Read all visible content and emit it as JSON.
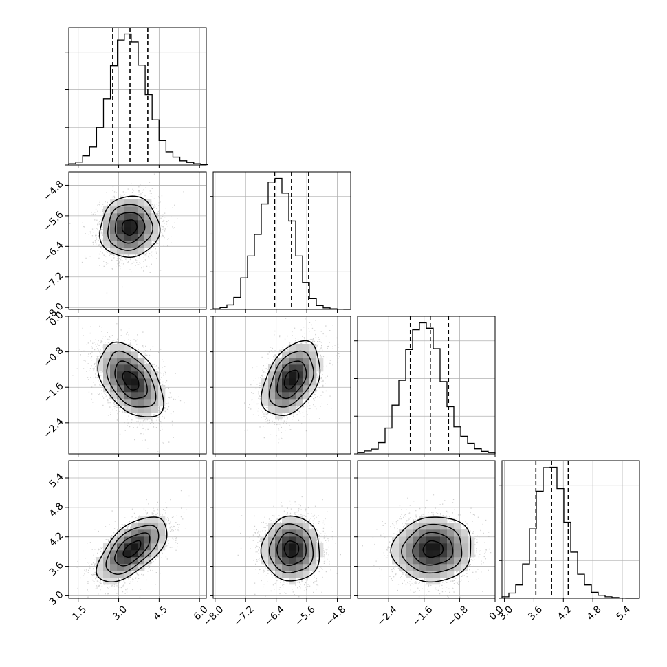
{
  "chart_data": {
    "type": "corner",
    "description_of_layout": "lower-triangular corner plot of 4 parameters: 1D histograms on the diagonal, 2D density (grayscale bins + contours + scatter points) below the diagonal",
    "num_parameters": 4,
    "parameters": [
      {
        "index": 0,
        "label": "",
        "range": [
          1.15,
          6.25
        ],
        "ticks": [
          1.5,
          3.0,
          4.5,
          6.0
        ],
        "tick_labels": [
          "1.5",
          "3.0",
          "4.5",
          "6.0"
        ],
        "quantiles": [
          2.78,
          3.42,
          4.08
        ],
        "hist_edges_start": 1.15,
        "hist_bin_width": 0.2575,
        "hist_counts": [
          0.4,
          0.9,
          2.8,
          5.5,
          11.5,
          20.2,
          30.3,
          38.2,
          40.0,
          37.6,
          30.5,
          21.5,
          13.8,
          7.5,
          4.0,
          2.4,
          1.3,
          0.8,
          0.4,
          0.1
        ]
      },
      {
        "index": 1,
        "label": "",
        "range": [
          -8.05,
          -4.45
        ],
        "ticks": [
          -8.0,
          -7.2,
          -6.4,
          -5.6,
          -4.8
        ],
        "tick_labels": [
          "−8.0",
          "−7.2",
          "−6.4",
          "−5.6",
          "−4.8"
        ],
        "quantiles": [
          -6.44,
          -6.0,
          -5.55
        ],
        "hist_edges_start": -8.05,
        "hist_bin_width": 0.18,
        "hist_counts": [
          0.2,
          0.6,
          1.5,
          4.0,
          10.5,
          17.8,
          25.0,
          35.2,
          42.5,
          43.7,
          38.8,
          29.5,
          17.8,
          9.0,
          3.6,
          1.3,
          0.5,
          0.2,
          0.05,
          0.0
        ]
      },
      {
        "index": 2,
        "label": "",
        "range": [
          -3.1,
          0.0
        ],
        "ticks": [
          -2.4,
          -1.6,
          -0.8,
          0.0
        ],
        "tick_labels": [
          "−2.4",
          "−1.6",
          "−0.8",
          "0.0"
        ],
        "quantiles": [
          -1.91,
          -1.46,
          -1.05
        ],
        "hist_edges_start": -3.1,
        "hist_bin_width": 0.155,
        "hist_counts": [
          0.4,
          0.9,
          1.5,
          3.6,
          8.2,
          15.5,
          23.4,
          33.2,
          39.5,
          41.7,
          40.0,
          33.5,
          23.0,
          15.0,
          8.6,
          5.6,
          3.4,
          1.6,
          0.8,
          0.4
        ]
      },
      {
        "index": 3,
        "label": "",
        "range": [
          2.95,
          5.75
        ],
        "ticks": [
          3.0,
          3.6,
          4.2,
          4.8,
          5.4
        ],
        "tick_labels": [
          "3.0",
          "3.6",
          "4.2",
          "4.8",
          "5.4"
        ],
        "quantiles": [
          3.64,
          3.96,
          4.3
        ],
        "hist_edges_start": 2.95,
        "hist_bin_width": 0.14,
        "hist_counts": [
          0.4,
          1.4,
          3.6,
          9.3,
          18.8,
          29.0,
          35.4,
          35.5,
          29.7,
          20.6,
          12.5,
          6.5,
          3.6,
          1.6,
          0.8,
          0.4,
          0.2,
          0.05,
          0.0,
          0.0
        ]
      }
    ],
    "pairs": [
      {
        "x": 0,
        "y": 1,
        "mean": [
          3.4,
          -5.9
        ],
        "sd": [
          0.55,
          0.4
        ],
        "corr": 0.05
      },
      {
        "x": 0,
        "y": 2,
        "mean": [
          3.45,
          -1.45
        ],
        "sd": [
          0.6,
          0.42
        ],
        "corr": -0.45
      },
      {
        "x": 1,
        "y": 2,
        "mean": [
          -6.0,
          -1.42
        ],
        "sd": [
          0.38,
          0.42
        ],
        "corr": 0.4
      },
      {
        "x": 0,
        "y": 3,
        "mean": [
          3.5,
          3.95
        ],
        "sd": [
          0.65,
          0.33
        ],
        "corr": 0.6
      },
      {
        "x": 1,
        "y": 3,
        "mean": [
          -6.0,
          3.95
        ],
        "sd": [
          0.38,
          0.33
        ],
        "corr": 0.0
      },
      {
        "x": 2,
        "y": 3,
        "mean": [
          -1.4,
          3.95
        ],
        "sd": [
          0.45,
          0.33
        ],
        "corr": 0.05
      }
    ],
    "contour_levels_sigma": [
      0.5,
      1.0,
      1.5,
      2.0
    ],
    "grid": true,
    "title": "",
    "colors": {
      "line": "#000000",
      "grid": "#b0b0b0",
      "points": "#9a9a9a"
    }
  }
}
